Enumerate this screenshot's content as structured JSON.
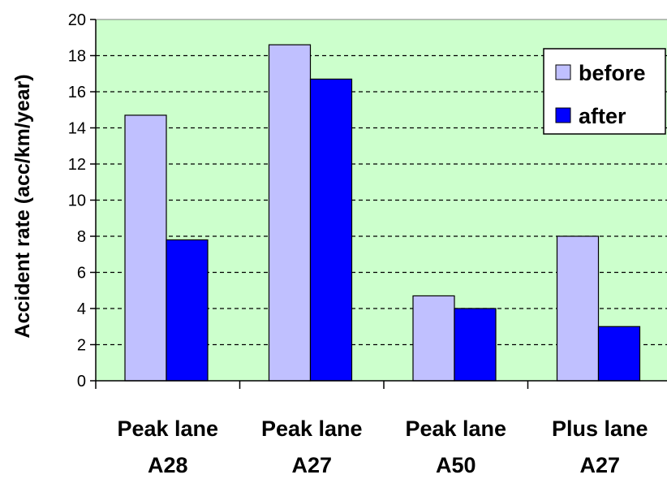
{
  "chart_data": {
    "type": "bar",
    "categories": [
      [
        "Peak lane",
        "A28"
      ],
      [
        "Peak lane",
        "A27"
      ],
      [
        "Peak lane",
        "A50"
      ],
      [
        "Plus lane",
        "A27"
      ]
    ],
    "series": [
      {
        "name": "before",
        "color": "#c0c0ff",
        "values": [
          14.7,
          18.6,
          4.7,
          8.0
        ]
      },
      {
        "name": "after",
        "color": "#0000ff",
        "values": [
          7.8,
          16.7,
          4.0,
          3.0
        ]
      }
    ],
    "ylabel": "Accident rate (acc/km/year)",
    "xlabel": "",
    "ylim": [
      0,
      20
    ],
    "yticks": [
      0,
      2,
      4,
      6,
      8,
      10,
      12,
      14,
      16,
      18,
      20
    ],
    "grid": true,
    "legend_position": "top-right",
    "plot_background": "#ccffcc"
  }
}
